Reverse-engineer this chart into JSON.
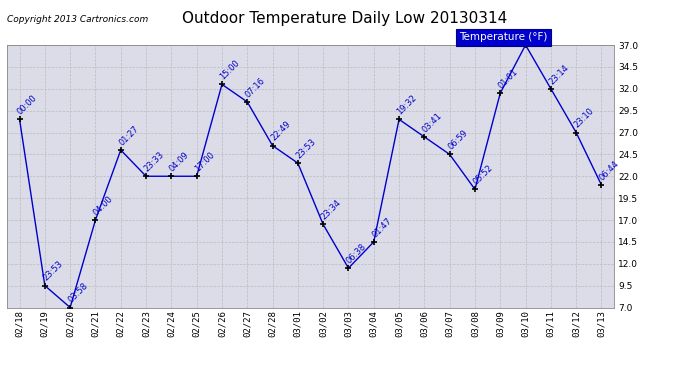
{
  "title": "Outdoor Temperature Daily Low 20130314",
  "copyright": "Copyright 2013 Cartronics.com",
  "legend_label": "Temperature (°F)",
  "x_labels": [
    "02/18",
    "02/19",
    "02/20",
    "02/21",
    "02/22",
    "02/23",
    "02/24",
    "02/25",
    "02/26",
    "02/27",
    "02/28",
    "03/01",
    "03/02",
    "03/03",
    "03/04",
    "03/05",
    "03/06",
    "03/07",
    "03/08",
    "03/09",
    "03/10",
    "03/11",
    "03/12",
    "03/13"
  ],
  "y_values": [
    28.5,
    9.5,
    7.0,
    17.0,
    25.0,
    22.0,
    22.0,
    22.0,
    32.5,
    30.5,
    25.5,
    23.5,
    16.5,
    11.5,
    14.5,
    28.5,
    26.5,
    24.5,
    20.5,
    31.5,
    37.0,
    32.0,
    27.0,
    21.0
  ],
  "point_labels": [
    "00:00",
    "23:53",
    "03:58",
    "04:00",
    "01:27",
    "23:33",
    "04:09",
    "17:00",
    "15:00",
    "07:16",
    "22:49",
    "23:53",
    "23:34",
    "06:38",
    "01:47",
    "19:32",
    "03:41",
    "06:59",
    "05:52",
    "01:01",
    "",
    "23:14",
    "23:10",
    "06:44"
  ],
  "ylim": [
    7.0,
    37.0
  ],
  "yticks": [
    7.0,
    9.5,
    12.0,
    14.5,
    17.0,
    19.5,
    22.0,
    24.5,
    27.0,
    29.5,
    32.0,
    34.5,
    37.0
  ],
  "line_color": "#0000cc",
  "marker_color": "#000000",
  "bg_color": "#ffffff",
  "plot_bg_color": "#dcdce8",
  "grid_color": "#bbbbbb",
  "title_fontsize": 11,
  "tick_fontsize": 6.5,
  "point_label_fontsize": 6,
  "legend_fontsize": 7.5,
  "copyright_fontsize": 6.5
}
